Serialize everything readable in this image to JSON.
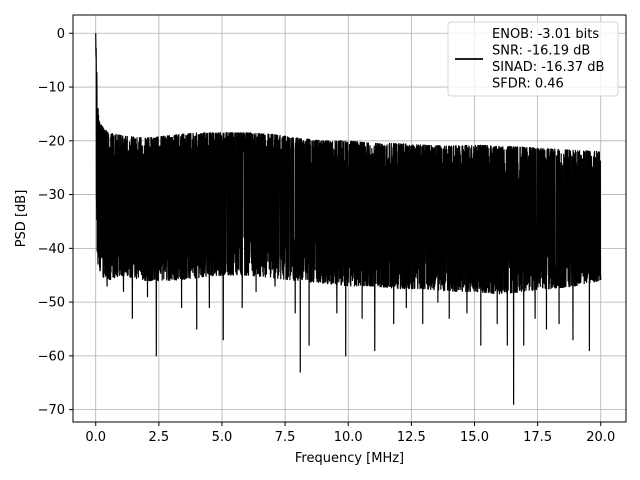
{
  "chart_data": {
    "type": "line",
    "title": "",
    "xlabel": "Frequency [MHz]",
    "ylabel": "PSD [dB]",
    "xlim": [
      -0.9,
      21.0
    ],
    "ylim": [
      -72.3,
      3.4
    ],
    "x_ticks": [
      0.0,
      2.5,
      5.0,
      7.5,
      10.0,
      12.5,
      15.0,
      17.5,
      20.0
    ],
    "x_tick_labels": [
      "0.0",
      "2.5",
      "5.0",
      "7.5",
      "10.0",
      "12.5",
      "15.0",
      "17.5",
      "20.0"
    ],
    "y_ticks": [
      0,
      -10,
      -20,
      -30,
      -40,
      -50,
      -60,
      -70
    ],
    "y_tick_labels": [
      "0",
      "−10",
      "−20",
      "−30",
      "−40",
      "−50",
      "−60",
      "−70"
    ],
    "grid": true,
    "legend_position": "top-right",
    "line_color": "#000000",
    "series": [
      {
        "x_range": [
          0.0,
          20.0
        ],
        "legend_lines": [
          "ENOB: -3.01 bits",
          "SNR: -16.19 dB",
          "SINAD: -16.37 dB",
          "SFDR: 0.46"
        ],
        "upper_envelope_x": [
          0.0,
          0.05,
          0.1,
          0.2,
          0.5,
          1.0,
          2.0,
          3.0,
          4.0,
          5.0,
          6.0,
          7.0,
          8.0,
          9.0,
          10.0,
          11.0,
          12.0,
          13.0,
          14.0,
          15.0,
          16.0,
          17.0,
          18.0,
          19.0,
          20.0
        ],
        "upper_envelope_y": [
          0,
          -8,
          -14,
          -17,
          -18.5,
          -19,
          -19.5,
          -19,
          -18.5,
          -18.5,
          -18.5,
          -18.8,
          -19.5,
          -20,
          -20,
          -20.5,
          -20.5,
          -20.8,
          -21,
          -20.8,
          -21,
          -21.2,
          -21.5,
          -21.8,
          -22
        ],
        "lower_envelope_y": [
          -28,
          -40,
          -44,
          -45,
          -46,
          -45,
          -46,
          -46,
          -45.5,
          -45,
          -45,
          -45.5,
          -46,
          -46.5,
          -47,
          -47,
          -47.5,
          -47.5,
          -48,
          -48,
          -48.5,
          -48,
          -47.5,
          -47,
          -46
        ],
        "dips": [
          {
            "x": 0.45,
            "y": -47
          },
          {
            "x": 0.75,
            "y": -44
          },
          {
            "x": 1.1,
            "y": -48
          },
          {
            "x": 1.45,
            "y": -53
          },
          {
            "x": 2.05,
            "y": -49
          },
          {
            "x": 2.4,
            "y": -60
          },
          {
            "x": 3.4,
            "y": -51
          },
          {
            "x": 4.0,
            "y": -55
          },
          {
            "x": 4.5,
            "y": -51
          },
          {
            "x": 5.05,
            "y": -57
          },
          {
            "x": 5.8,
            "y": -51
          },
          {
            "x": 6.35,
            "y": -48
          },
          {
            "x": 7.1,
            "y": -47
          },
          {
            "x": 7.9,
            "y": -52
          },
          {
            "x": 8.1,
            "y": -63
          },
          {
            "x": 8.45,
            "y": -58
          },
          {
            "x": 9.55,
            "y": -52
          },
          {
            "x": 9.9,
            "y": -60
          },
          {
            "x": 10.55,
            "y": -53
          },
          {
            "x": 11.05,
            "y": -59
          },
          {
            "x": 11.8,
            "y": -54
          },
          {
            "x": 12.3,
            "y": -51
          },
          {
            "x": 12.95,
            "y": -54
          },
          {
            "x": 13.55,
            "y": -50
          },
          {
            "x": 14.0,
            "y": -53
          },
          {
            "x": 14.7,
            "y": -52
          },
          {
            "x": 15.25,
            "y": -58
          },
          {
            "x": 15.9,
            "y": -54
          },
          {
            "x": 16.3,
            "y": -58
          },
          {
            "x": 16.55,
            "y": -69
          },
          {
            "x": 16.95,
            "y": -58
          },
          {
            "x": 17.4,
            "y": -53
          },
          {
            "x": 17.85,
            "y": -55
          },
          {
            "x": 18.35,
            "y": -54
          },
          {
            "x": 18.9,
            "y": -57
          },
          {
            "x": 19.55,
            "y": -59
          },
          {
            "x": 19.9,
            "y": -46
          }
        ]
      }
    ]
  }
}
